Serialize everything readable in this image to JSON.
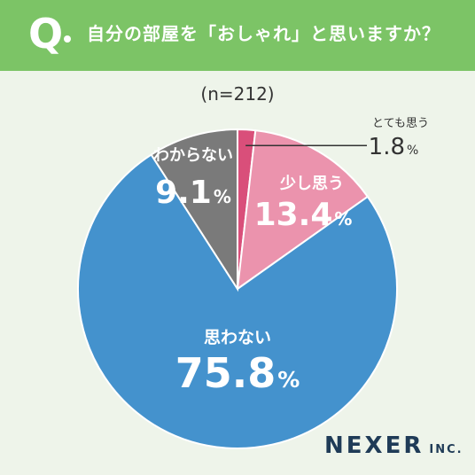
{
  "header": {
    "q_label": "Q",
    "question": "自分の部屋を「おしゃれ」と思いますか？"
  },
  "note": "(n=212)",
  "logo": {
    "name": "NEXER",
    "suffix": "INC."
  },
  "colors": {
    "header_bg": "#7cc466",
    "background": "#eef4ea",
    "very": "#d94f7a",
    "somewhat": "#eb93ad",
    "not": "#4492cd",
    "unknown": "#7a7a7a"
  },
  "chart_data": {
    "type": "pie",
    "unit": "%",
    "slices": [
      {
        "label": "とても思う",
        "value": 1.8,
        "display": "1.8",
        "color": "#d94f7a"
      },
      {
        "label": "少し思う",
        "value": 13.4,
        "display": "13.4",
        "color": "#eb93ad"
      },
      {
        "label": "思わない",
        "value": 75.8,
        "display": "75.8",
        "color": "#4492cd"
      },
      {
        "label": "わからない",
        "value": 9.1,
        "display": "9.1",
        "color": "#7a7a7a"
      }
    ]
  }
}
